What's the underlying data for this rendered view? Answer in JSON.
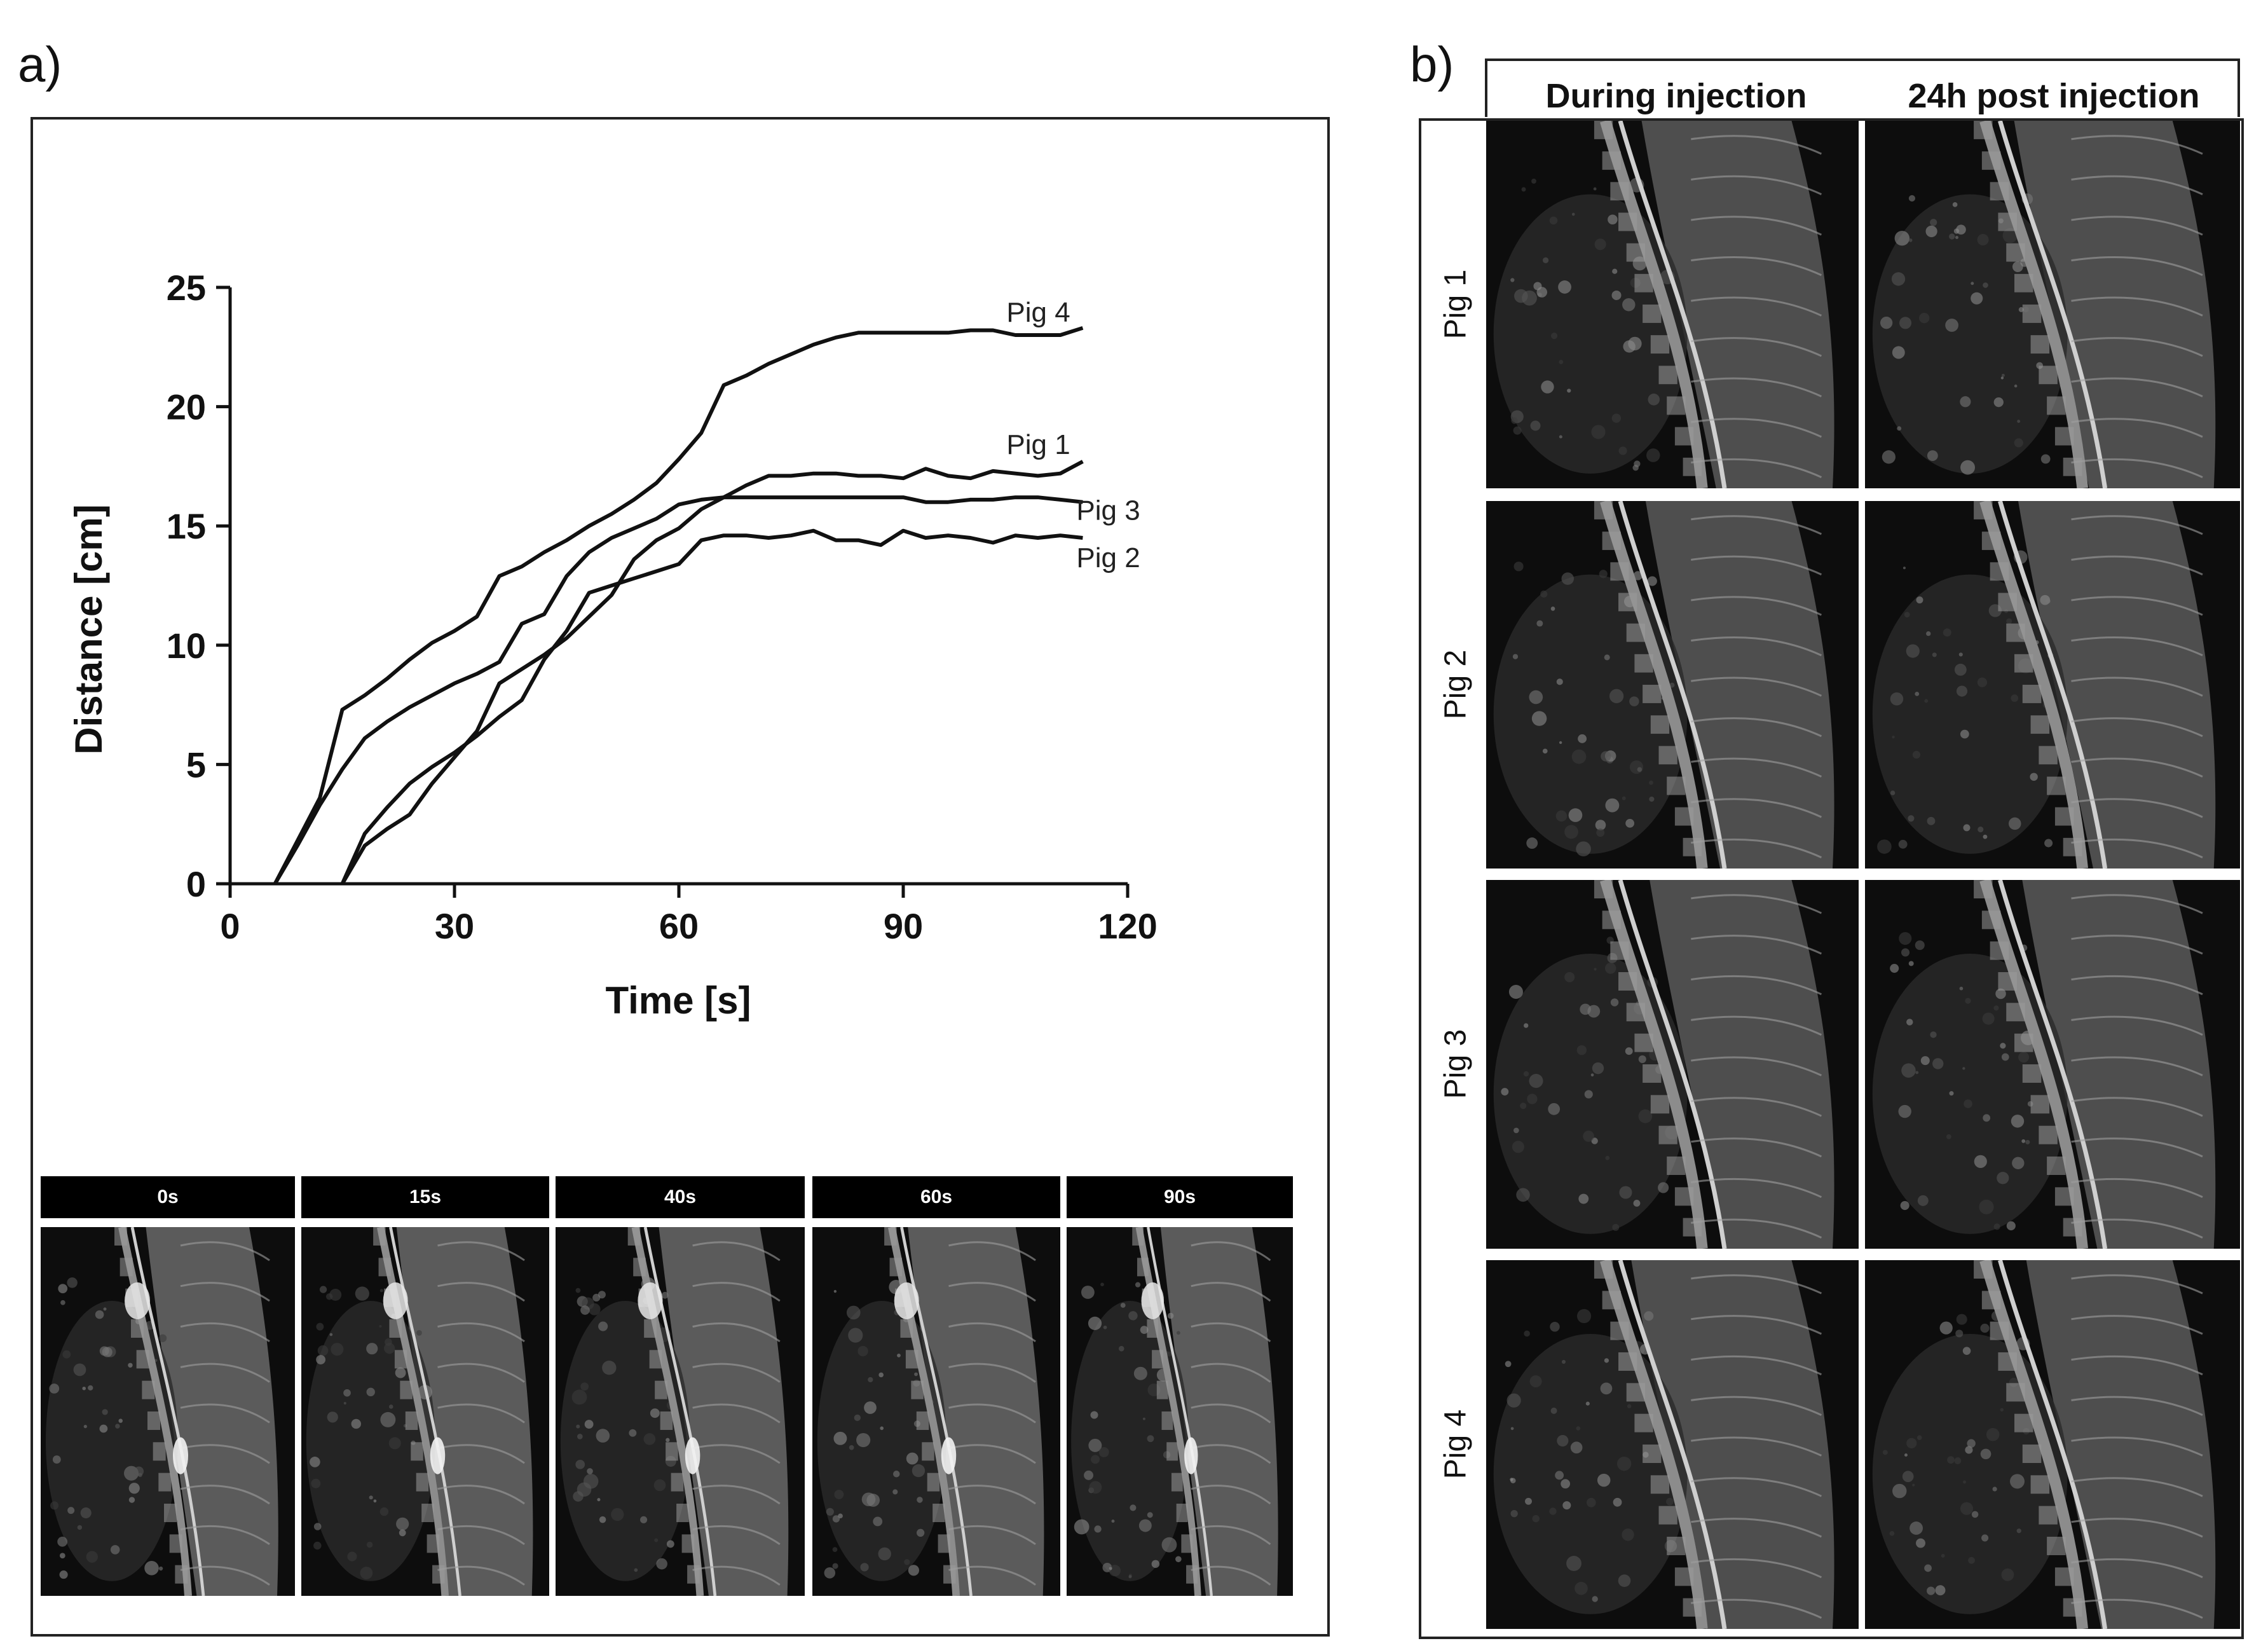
{
  "panels": {
    "a": {
      "letter": "a)"
    },
    "b": {
      "letter": "b)"
    }
  },
  "chart_data": {
    "type": "line",
    "xlabel": "Time [s]",
    "ylabel": "Distance [cm]",
    "xlim": [
      0,
      120
    ],
    "ylim": [
      0,
      25
    ],
    "xticks": [
      0,
      30,
      60,
      90,
      120
    ],
    "yticks": [
      0,
      5,
      10,
      15,
      20,
      25
    ],
    "grid": false,
    "legend": "inline labels at line ends",
    "series": [
      {
        "name": "Pig 4",
        "x": [
          6,
          9,
          12,
          15,
          18,
          21,
          24,
          27,
          30,
          33,
          36,
          39,
          42,
          45,
          48,
          51,
          54,
          57,
          60,
          63,
          66,
          69,
          72,
          75,
          78,
          81,
          84,
          87,
          90,
          93,
          96,
          99,
          102,
          105,
          108,
          111,
          114
        ],
        "y": [
          0,
          1.8,
          3.6,
          7.3,
          7.9,
          8.6,
          9.4,
          10.1,
          10.6,
          11.2,
          12.9,
          13.3,
          13.9,
          14.4,
          15.0,
          15.5,
          16.1,
          16.8,
          17.8,
          18.9,
          20.9,
          21.3,
          21.8,
          22.2,
          22.6,
          22.9,
          23.1,
          23.1,
          23.1,
          23.1,
          23.1,
          23.2,
          23.2,
          23.0,
          23.0,
          23.0,
          23.3
        ]
      },
      {
        "name": "Pig 1",
        "x": [
          15,
          18,
          21,
          24,
          27,
          30,
          33,
          36,
          39,
          42,
          45,
          48,
          51,
          54,
          57,
          60,
          63,
          66,
          69,
          72,
          75,
          78,
          81,
          84,
          87,
          90,
          93,
          96,
          99,
          102,
          105,
          108,
          111,
          114
        ],
        "y": [
          0,
          1.6,
          2.3,
          2.9,
          4.2,
          5.3,
          6.4,
          8.4,
          9.0,
          9.6,
          10.3,
          11.2,
          12.1,
          13.6,
          14.4,
          14.9,
          15.7,
          16.2,
          16.7,
          17.1,
          17.1,
          17.2,
          17.2,
          17.1,
          17.1,
          17.0,
          17.4,
          17.1,
          17.0,
          17.3,
          17.2,
          17.1,
          17.2,
          17.7
        ]
      },
      {
        "name": "Pig 3",
        "x": [
          6,
          9,
          12,
          15,
          18,
          21,
          24,
          27,
          30,
          33,
          36,
          39,
          42,
          45,
          48,
          51,
          54,
          57,
          60,
          63,
          66,
          69,
          72,
          75,
          78,
          81,
          84,
          87,
          90,
          93,
          96,
          99,
          102,
          105,
          108,
          111,
          114
        ],
        "y": [
          0,
          1.6,
          3.3,
          4.8,
          6.1,
          6.8,
          7.4,
          7.9,
          8.4,
          8.8,
          9.3,
          10.9,
          11.3,
          12.9,
          13.9,
          14.5,
          14.9,
          15.3,
          15.9,
          16.1,
          16.2,
          16.2,
          16.2,
          16.2,
          16.2,
          16.2,
          16.2,
          16.2,
          16.2,
          16.0,
          16.0,
          16.1,
          16.1,
          16.2,
          16.2,
          16.1,
          16.0
        ]
      },
      {
        "name": "Pig 2",
        "x": [
          15,
          18,
          21,
          24,
          27,
          30,
          33,
          36,
          39,
          42,
          45,
          48,
          51,
          54,
          57,
          60,
          63,
          66,
          69,
          72,
          75,
          78,
          81,
          84,
          87,
          90,
          93,
          96,
          99,
          102,
          105,
          108,
          111,
          114
        ],
        "y": [
          0,
          2.1,
          3.2,
          4.2,
          4.9,
          5.5,
          6.2,
          7.0,
          7.7,
          9.4,
          10.6,
          12.2,
          12.5,
          12.8,
          13.1,
          13.4,
          14.4,
          14.6,
          14.6,
          14.5,
          14.6,
          14.8,
          14.4,
          14.4,
          14.2,
          14.8,
          14.5,
          14.6,
          14.5,
          14.3,
          14.6,
          14.5,
          14.6,
          14.5
        ]
      }
    ]
  },
  "timeline": {
    "frames": [
      {
        "label": "0s"
      },
      {
        "label": "15s"
      },
      {
        "label": "40s"
      },
      {
        "label": "60s"
      },
      {
        "label": "90s"
      }
    ]
  },
  "grid_b": {
    "col_headers": [
      "During injection",
      "24h post injection"
    ],
    "row_labels": [
      "Pig 1",
      "Pig 2",
      "Pig 3",
      "Pig 4"
    ]
  }
}
